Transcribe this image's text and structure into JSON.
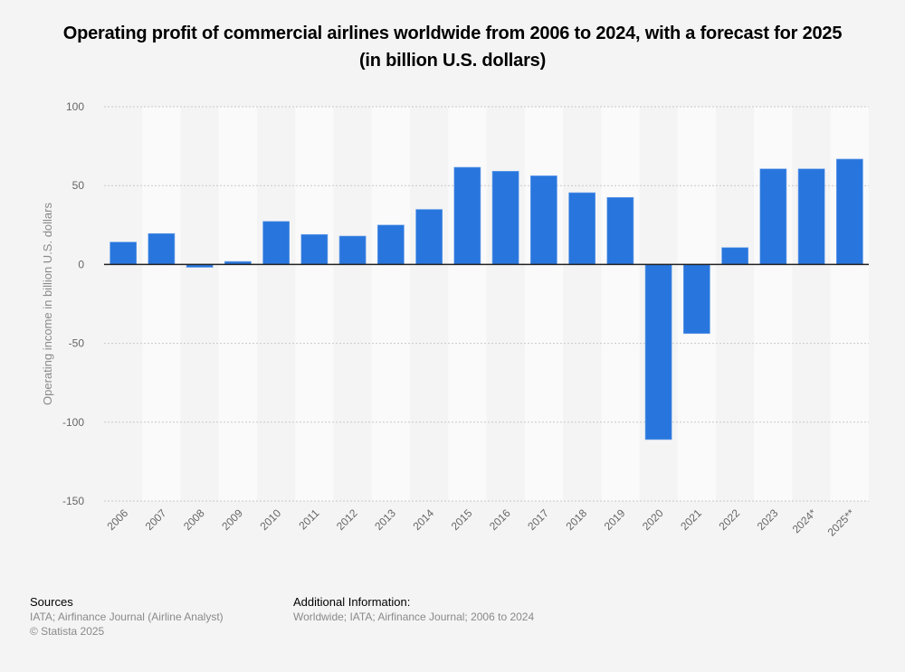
{
  "chart_data": {
    "type": "bar",
    "title": "Operating profit of commercial airlines worldwide from 2006 to 2024, with a forecast for 2025 (in billion U.S. dollars)",
    "xlabel": "",
    "ylabel": "Operating income in billion U.S. dollars",
    "ylim": [
      -150,
      100
    ],
    "yticks": [
      100,
      50,
      0,
      -50,
      -100,
      -150
    ],
    "grid": true,
    "legend": "none",
    "bar_color": "#2876dd",
    "categories": [
      "2006",
      "2007",
      "2008",
      "2009",
      "2010",
      "2011",
      "2012",
      "2013",
      "2014",
      "2015",
      "2016",
      "2017",
      "2018",
      "2019",
      "2020",
      "2021",
      "2022",
      "2023",
      "2024*",
      "2025**"
    ],
    "values": [
      14.2,
      19.6,
      -1.8,
      1.9,
      27.3,
      19.0,
      18.0,
      25.0,
      34.9,
      61.6,
      59.1,
      56.2,
      45.5,
      42.5,
      -111.0,
      -43.8,
      10.7,
      60.6,
      60.6,
      66.8
    ]
  },
  "footer": {
    "sources_heading": "Sources",
    "sources_line1": "IATA; Airfinance Journal (Airline Analyst)",
    "sources_line2": "© Statista 2025",
    "additional_heading": "Additional Information:",
    "additional_text": "Worldwide; IATA; Airfinance Journal; 2006 to 2024"
  }
}
